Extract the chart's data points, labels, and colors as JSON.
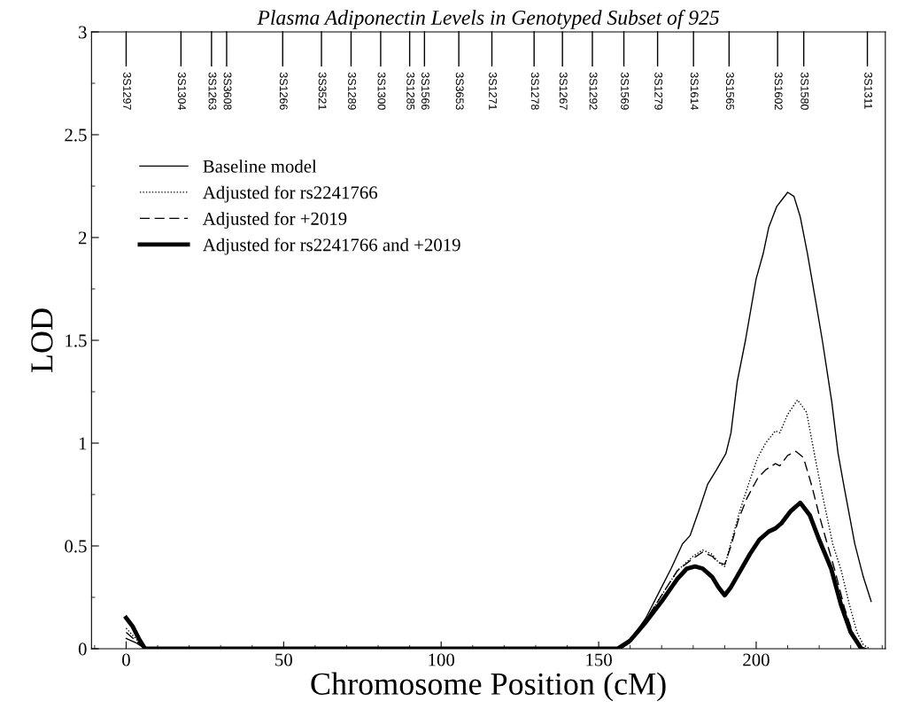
{
  "chart_data": {
    "type": "line",
    "title": "Plasma Adiponectin Levels in Genotyped Subset of 925",
    "xlabel": "Chromosome Position (cM)",
    "ylabel": "LOD",
    "xlim": [
      -11,
      241
    ],
    "ylim": [
      0,
      3
    ],
    "xticks": [
      0,
      50,
      100,
      150,
      200
    ],
    "yticks": [
      0,
      0.5,
      1,
      1.5,
      2,
      2.5,
      3
    ],
    "legend": "top left",
    "grid": false,
    "ref_lines": [
      {
        "axis": "x",
        "value": 0,
        "label": "3S1297"
      },
      {
        "axis": "x",
        "value": 17.4,
        "label": "3S1304"
      },
      {
        "axis": "x",
        "value": 27.1,
        "label": "3S1263"
      },
      {
        "axis": "x",
        "value": 31.9,
        "label": "3S3608"
      },
      {
        "axis": "x",
        "value": 49.7,
        "label": "3S1266"
      },
      {
        "axis": "x",
        "value": 62,
        "label": "3S3521"
      },
      {
        "axis": "x",
        "value": 71.4,
        "label": "3S1289"
      },
      {
        "axis": "x",
        "value": 80.8,
        "label": "3S1300"
      },
      {
        "axis": "x",
        "value": 90,
        "label": "3S1285"
      },
      {
        "axis": "x",
        "value": 94.7,
        "label": "3S1566"
      },
      {
        "axis": "x",
        "value": 105.6,
        "label": "3S3653"
      },
      {
        "axis": "x",
        "value": 116.1,
        "label": "3S1271"
      },
      {
        "axis": "x",
        "value": 129.5,
        "label": "3S1278"
      },
      {
        "axis": "x",
        "value": 138.5,
        "label": "3S1267"
      },
      {
        "axis": "x",
        "value": 148,
        "label": "3S1292"
      },
      {
        "axis": "x",
        "value": 158,
        "label": "3S1569"
      },
      {
        "axis": "x",
        "value": 168.7,
        "label": "3S1279"
      },
      {
        "axis": "x",
        "value": 180.1,
        "label": "3S1614"
      },
      {
        "axis": "x",
        "value": 191.4,
        "label": "3S1565"
      },
      {
        "axis": "x",
        "value": 206.8,
        "label": "3S1602"
      },
      {
        "axis": "x",
        "value": 215.1,
        "label": "3S1580"
      },
      {
        "axis": "x",
        "value": 235.3,
        "label": "3S1311"
      }
    ],
    "series": [
      {
        "name": "Baseline model",
        "color": "#000000",
        "line_style": "solid",
        "x": [
          0,
          3,
          6,
          157,
          160,
          165,
          170,
          173,
          176.6,
          179,
          182,
          184.6,
          187.4,
          190.4,
          192,
          194,
          196.6,
          200,
          202.2,
          204,
          206.5,
          208,
          210,
          212,
          214,
          216.3,
          219,
          221,
          224,
          226,
          228,
          231.3,
          234,
          236.5
        ],
        "values": [
          0.05,
          0.03,
          0,
          0,
          0.04,
          0.15,
          0.3,
          0.39,
          0.51,
          0.55,
          0.68,
          0.8,
          0.87,
          0.95,
          1.05,
          1.3,
          1.5,
          1.8,
          1.92,
          2.05,
          2.15,
          2.18,
          2.22,
          2.2,
          2.1,
          1.92,
          1.68,
          1.5,
          1.2,
          0.95,
          0.78,
          0.51,
          0.35,
          0.23
        ]
      },
      {
        "name": "Adjusted for rs2241766",
        "color": "#000000",
        "line_style": "dotted",
        "x": [
          0,
          3,
          6,
          157,
          160,
          165,
          170,
          175,
          180,
          183,
          186,
          188,
          190,
          191.9,
          195,
          198,
          200.5,
          203,
          206.1,
          207.5,
          210,
          213.1,
          216,
          218.7,
          221,
          224.3,
          227,
          229.5,
          232,
          234,
          236
        ],
        "values": [
          0.1,
          0.05,
          0,
          0,
          0.03,
          0.14,
          0.26,
          0.38,
          0.45,
          0.48,
          0.46,
          0.42,
          0.4,
          0.51,
          0.68,
          0.82,
          0.93,
          1.0,
          1.06,
          1.05,
          1.14,
          1.21,
          1.15,
          0.93,
          0.75,
          0.51,
          0.38,
          0.22,
          0.08,
          0.02,
          0
        ]
      },
      {
        "name": "Adjusted for +2019",
        "color": "#000000",
        "line_style": "dashed",
        "x": [
          0,
          3,
          6,
          157,
          160,
          165,
          170,
          175,
          180,
          183,
          186,
          188,
          190,
          192,
          194.4,
          197,
          200.5,
          203,
          206.1,
          207.5,
          210,
          212.6,
          215,
          217.7,
          220,
          222,
          225,
          228,
          231,
          233,
          235
        ],
        "values": [
          0.08,
          0.04,
          0,
          0,
          0.03,
          0.14,
          0.26,
          0.38,
          0.44,
          0.47,
          0.45,
          0.42,
          0.41,
          0.5,
          0.63,
          0.73,
          0.83,
          0.87,
          0.9,
          0.89,
          0.94,
          0.96,
          0.93,
          0.79,
          0.65,
          0.54,
          0.38,
          0.2,
          0.06,
          0.01,
          0
        ]
      },
      {
        "name": "Adjusted for rs2241766 and +2019",
        "color": "#000000",
        "line_style": "solid",
        "x": [
          0,
          2,
          4,
          6,
          156,
          160,
          165,
          170,
          175,
          178,
          180.6,
          183,
          186,
          188,
          190,
          192,
          195,
          198,
          201,
          204,
          206.1,
          208,
          211,
          214,
          217,
          220,
          223.8,
          227,
          230,
          233.4
        ],
        "values": [
          0.15,
          0.11,
          0.05,
          0,
          0,
          0.04,
          0.13,
          0.23,
          0.34,
          0.39,
          0.4,
          0.39,
          0.35,
          0.3,
          0.26,
          0.3,
          0.38,
          0.46,
          0.53,
          0.57,
          0.585,
          0.61,
          0.67,
          0.71,
          0.65,
          0.53,
          0.39,
          0.21,
          0.08,
          0
        ]
      }
    ]
  }
}
